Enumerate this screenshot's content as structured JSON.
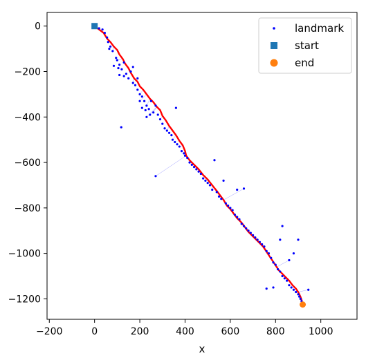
{
  "chart_data": {
    "type": "scatter",
    "title": "",
    "xlabel": "x",
    "ylabel": "",
    "xlim": [
      -210,
      1160
    ],
    "ylim": [
      -1290,
      60
    ],
    "xticks": [
      -200,
      0,
      200,
      400,
      600,
      800,
      1000
    ],
    "yticks": [
      0,
      -200,
      -400,
      -600,
      -800,
      -1000,
      -1200
    ],
    "xtick_labels": [
      "−200",
      "0",
      "200",
      "400",
      "600",
      "800",
      "1000"
    ],
    "ytick_labels": [
      "0",
      "−200",
      "−400",
      "−600",
      "−800",
      "−1000",
      "−1200"
    ],
    "grid": false,
    "legend_position": "top-right",
    "colors": {
      "landmark": "#0000ff",
      "start": "#1f77b4",
      "end": "#ff7f0e",
      "trajectory": "#ff0000",
      "links": "#6666ff"
    },
    "legend": [
      {
        "name": "landmark",
        "marker": "dot"
      },
      {
        "name": "start",
        "marker": "square"
      },
      {
        "name": "end",
        "marker": "circle"
      }
    ],
    "series": [
      {
        "name": "landmark",
        "points": [
          [
            20,
            -10
          ],
          [
            35,
            -15
          ],
          [
            45,
            -30
          ],
          [
            55,
            -50
          ],
          [
            60,
            -70
          ],
          [
            70,
            -90
          ],
          [
            80,
            -110
          ],
          [
            65,
            -100
          ],
          [
            95,
            -140
          ],
          [
            100,
            -150
          ],
          [
            110,
            -170
          ],
          [
            120,
            -190
          ],
          [
            130,
            -160
          ],
          [
            140,
            -210
          ],
          [
            150,
            -230
          ],
          [
            160,
            -200
          ],
          [
            105,
            -185
          ],
          [
            85,
            -175
          ],
          [
            170,
            -250
          ],
          [
            180,
            -260
          ],
          [
            190,
            -280
          ],
          [
            200,
            -300
          ],
          [
            210,
            -310
          ],
          [
            220,
            -330
          ],
          [
            230,
            -350
          ],
          [
            240,
            -365
          ],
          [
            250,
            -330
          ],
          [
            260,
            -380
          ],
          [
            270,
            -350
          ],
          [
            280,
            -390
          ],
          [
            290,
            -410
          ],
          [
            300,
            -430
          ],
          [
            310,
            -450
          ],
          [
            320,
            -460
          ],
          [
            330,
            -470
          ],
          [
            340,
            -480
          ],
          [
            345,
            -500
          ],
          [
            355,
            -510
          ],
          [
            365,
            -520
          ],
          [
            375,
            -530
          ],
          [
            385,
            -550
          ],
          [
            395,
            -560
          ],
          [
            400,
            -570
          ],
          [
            410,
            -580
          ],
          [
            420,
            -600
          ],
          [
            430,
            -610
          ],
          [
            440,
            -620
          ],
          [
            450,
            -630
          ],
          [
            460,
            -640
          ],
          [
            470,
            -650
          ],
          [
            480,
            -670
          ],
          [
            490,
            -680
          ],
          [
            500,
            -690
          ],
          [
            510,
            -700
          ],
          [
            520,
            -720
          ],
          [
            530,
            -590
          ],
          [
            540,
            -730
          ],
          [
            550,
            -750
          ],
          [
            560,
            -760
          ],
          [
            570,
            -680
          ],
          [
            580,
            -780
          ],
          [
            590,
            -790
          ],
          [
            600,
            -800
          ],
          [
            610,
            -810
          ],
          [
            620,
            -830
          ],
          [
            630,
            -840
          ],
          [
            640,
            -850
          ],
          [
            650,
            -870
          ],
          [
            660,
            -880
          ],
          [
            670,
            -890
          ],
          [
            680,
            -900
          ],
          [
            690,
            -910
          ],
          [
            700,
            -920
          ],
          [
            710,
            -930
          ],
          [
            720,
            -940
          ],
          [
            730,
            -950
          ],
          [
            740,
            -960
          ],
          [
            750,
            -970
          ],
          [
            760,
            -990
          ],
          [
            770,
            -1000
          ],
          [
            780,
            -1020
          ],
          [
            790,
            -1040
          ],
          [
            800,
            -1050
          ],
          [
            810,
            -1070
          ],
          [
            820,
            -1080
          ],
          [
            830,
            -1100
          ],
          [
            840,
            -1110
          ],
          [
            850,
            -1120
          ],
          [
            860,
            -1140
          ],
          [
            870,
            -1150
          ],
          [
            880,
            -1160
          ],
          [
            890,
            -1170
          ],
          [
            900,
            -1180
          ],
          [
            905,
            -1190
          ],
          [
            910,
            -1200
          ],
          [
            915,
            -1210
          ],
          [
            920,
            -1220
          ],
          [
            925,
            -1230
          ],
          [
            118,
            -445
          ],
          [
            270,
            -660
          ],
          [
            360,
            -360
          ],
          [
            630,
            -720
          ],
          [
            660,
            -715
          ],
          [
            820,
            -940
          ],
          [
            830,
            -880
          ],
          [
            860,
            -1030
          ],
          [
            880,
            -1000
          ],
          [
            900,
            -940
          ],
          [
            945,
            -1160
          ],
          [
            760,
            -1155
          ],
          [
            790,
            -1150
          ],
          [
            230,
            -400
          ],
          [
            110,
            -215
          ],
          [
            130,
            -220
          ],
          [
            200,
            -330
          ],
          [
            210,
            -360
          ],
          [
            225,
            -370
          ],
          [
            245,
            -390
          ],
          [
            190,
            -230
          ],
          [
            170,
            -180
          ]
        ]
      },
      {
        "name": "start",
        "points": [
          [
            0,
            0
          ]
        ]
      },
      {
        "name": "end",
        "points": [
          [
            920,
            -1225
          ]
        ]
      },
      {
        "name": "trajectory",
        "points": [
          [
            0,
            0
          ],
          [
            20,
            -15
          ],
          [
            40,
            -30
          ],
          [
            55,
            -55
          ],
          [
            70,
            -70
          ],
          [
            85,
            -90
          ],
          [
            100,
            -105
          ],
          [
            110,
            -125
          ],
          [
            125,
            -145
          ],
          [
            135,
            -165
          ],
          [
            150,
            -185
          ],
          [
            160,
            -205
          ],
          [
            175,
            -230
          ],
          [
            190,
            -245
          ],
          [
            200,
            -265
          ],
          [
            215,
            -280
          ],
          [
            230,
            -300
          ],
          [
            245,
            -320
          ],
          [
            260,
            -335
          ],
          [
            275,
            -355
          ],
          [
            290,
            -370
          ],
          [
            300,
            -395
          ],
          [
            315,
            -415
          ],
          [
            330,
            -440
          ],
          [
            345,
            -460
          ],
          [
            360,
            -480
          ],
          [
            375,
            -505
          ],
          [
            390,
            -525
          ],
          [
            400,
            -550
          ],
          [
            405,
            -570
          ],
          [
            420,
            -590
          ],
          [
            440,
            -610
          ],
          [
            460,
            -630
          ],
          [
            480,
            -655
          ],
          [
            500,
            -675
          ],
          [
            520,
            -700
          ],
          [
            540,
            -725
          ],
          [
            555,
            -745
          ],
          [
            570,
            -765
          ],
          [
            585,
            -790
          ],
          [
            600,
            -805
          ],
          [
            615,
            -825
          ],
          [
            630,
            -845
          ],
          [
            650,
            -865
          ],
          [
            665,
            -885
          ],
          [
            680,
            -905
          ],
          [
            700,
            -925
          ],
          [
            715,
            -940
          ],
          [
            730,
            -955
          ],
          [
            745,
            -970
          ],
          [
            755,
            -985
          ],
          [
            765,
            -1000
          ],
          [
            775,
            -1015
          ],
          [
            785,
            -1030
          ],
          [
            795,
            -1045
          ],
          [
            805,
            -1060
          ],
          [
            815,
            -1075
          ],
          [
            830,
            -1090
          ],
          [
            845,
            -1105
          ],
          [
            860,
            -1120
          ],
          [
            875,
            -1140
          ],
          [
            890,
            -1155
          ],
          [
            900,
            -1170
          ],
          [
            910,
            -1190
          ],
          [
            915,
            -1205
          ],
          [
            920,
            -1225
          ]
        ]
      }
    ]
  }
}
